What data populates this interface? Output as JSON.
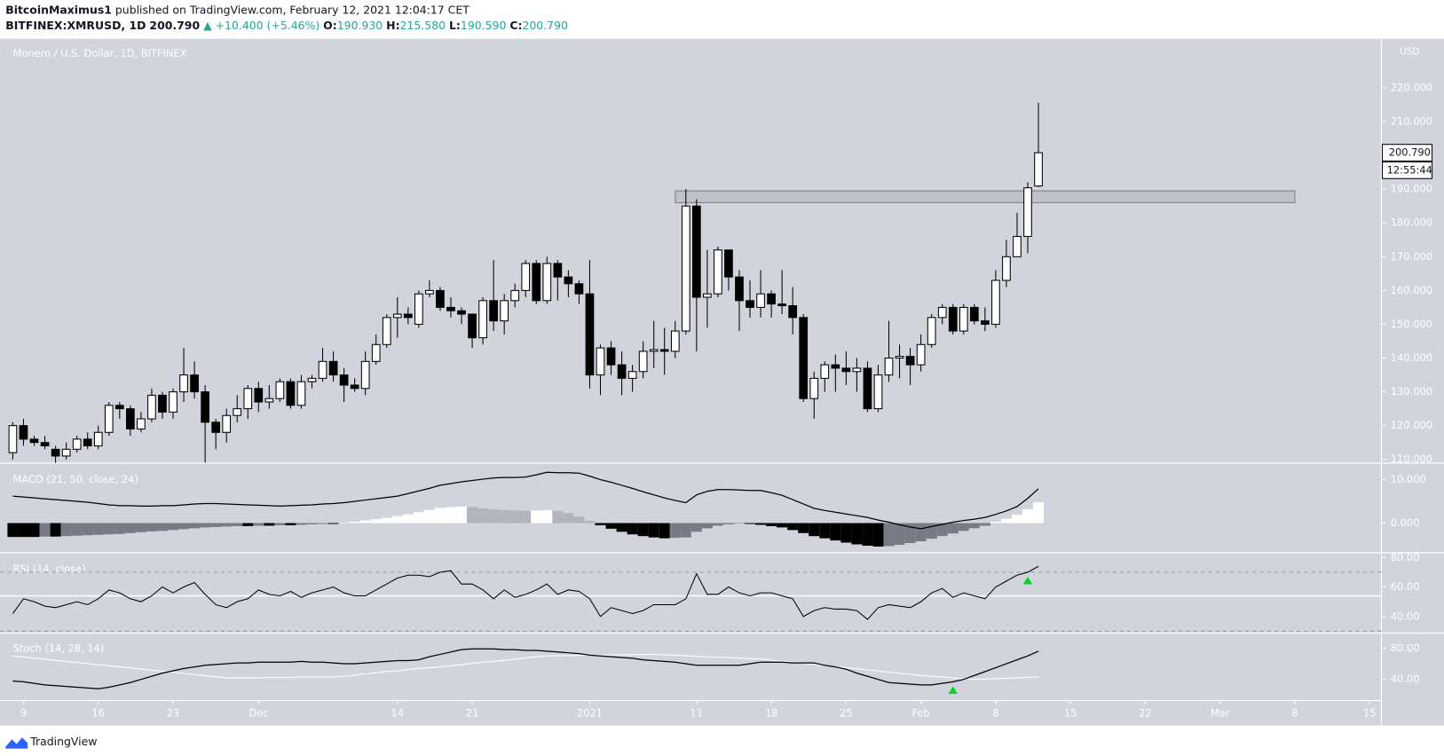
{
  "header": {
    "author": "BitcoinMaximus1",
    "published": "published on TradingView.com, February 12, 2021 12:04:17 CET",
    "symbol": "BITFINEX:XMRUSD, 1D",
    "price": "200.790",
    "change": "▲ +10.400 (+5.46%)",
    "ohlc": [
      {
        "label": "O:",
        "value": "190.930"
      },
      {
        "label": "H:",
        "value": "215.580"
      },
      {
        "label": "L:",
        "value": "190.590"
      },
      {
        "label": "C:",
        "value": "200.790"
      }
    ]
  },
  "chart_data": [
    {
      "type": "candlestick",
      "title": "Monero / U.S. Dollar, 1D, BITFINEX",
      "x": [
        0,
        1,
        2,
        3,
        4,
        5,
        6,
        7,
        8,
        9,
        10,
        11,
        12,
        13,
        14,
        15,
        16,
        17,
        18,
        19,
        20,
        21,
        22,
        23,
        24,
        25,
        26,
        27,
        28,
        29,
        30,
        31,
        32,
        33,
        34,
        35,
        36,
        37,
        38,
        39,
        40,
        41,
        42,
        43,
        44,
        45,
        46,
        47,
        48,
        49,
        50,
        51,
        52,
        53,
        54,
        55,
        56,
        57,
        58,
        59,
        60,
        61,
        62,
        63,
        64,
        65,
        66,
        67,
        68,
        69,
        70,
        71,
        72,
        73,
        74,
        75,
        76,
        77,
        78,
        79,
        80,
        81,
        82,
        83,
        84,
        85,
        86,
        87,
        88,
        89,
        90,
        91,
        92,
        93,
        94,
        95,
        96
      ],
      "open": [
        112,
        120,
        116,
        115,
        113,
        111,
        113,
        116,
        114,
        118,
        126,
        125,
        119,
        122,
        129,
        124,
        130,
        135,
        130,
        121,
        118,
        123,
        125,
        131,
        127,
        128,
        133,
        126,
        133,
        134,
        139,
        135,
        132,
        131,
        139,
        144,
        152,
        153,
        150,
        159,
        160,
        155,
        154,
        153,
        146,
        157,
        151,
        157,
        160,
        168,
        157,
        168,
        164,
        162,
        159,
        135,
        143,
        138,
        134,
        136,
        142,
        142.5,
        142,
        148,
        185,
        158,
        159,
        172,
        164,
        157,
        155,
        159,
        156,
        155.5,
        152,
        128,
        134,
        138,
        137,
        136,
        137,
        125,
        135,
        140,
        140.5,
        138,
        144,
        152,
        155,
        148,
        155,
        151,
        150,
        163,
        170,
        176,
        190.93
      ],
      "high": [
        121,
        122,
        117,
        117,
        114,
        115,
        117,
        118,
        120,
        127,
        127,
        126,
        124,
        131,
        130,
        131,
        143,
        139,
        132,
        122,
        125,
        129,
        132,
        133,
        132,
        134,
        134,
        135,
        135,
        143,
        142,
        137,
        134,
        142,
        147,
        153,
        158,
        155,
        160,
        163,
        161,
        158,
        155,
        153,
        158,
        169,
        159,
        162,
        169,
        169,
        170,
        169,
        166,
        163,
        169,
        144,
        145,
        142,
        138,
        145,
        151,
        149,
        151,
        190,
        187,
        172,
        173,
        172,
        166,
        163,
        166,
        160,
        166,
        161,
        153,
        136,
        139,
        141,
        142,
        140,
        139,
        138,
        151,
        144,
        143,
        147,
        153,
        156,
        156,
        156,
        156,
        155,
        166,
        175,
        183,
        192,
        215.58
      ],
      "low": [
        110,
        114,
        114,
        113,
        109,
        110,
        112,
        113,
        113,
        117,
        122,
        117,
        118,
        121,
        122,
        122,
        127,
        128,
        109,
        113,
        115,
        121,
        122,
        124,
        125,
        127,
        125,
        125,
        131,
        133,
        133,
        127,
        130,
        129,
        138,
        143,
        146,
        150,
        149,
        158,
        154,
        152,
        150,
        143,
        144,
        148,
        147,
        155,
        158,
        156,
        156,
        157,
        158,
        156,
        131,
        129,
        135,
        129,
        130,
        134,
        137,
        135,
        140,
        147,
        142,
        149,
        158,
        160,
        148,
        152,
        152,
        152,
        153,
        147,
        127,
        122,
        130,
        130,
        132,
        130,
        124,
        124,
        133,
        134,
        132,
        136,
        143,
        150,
        147,
        147,
        150,
        148,
        149,
        161,
        170,
        171,
        190.59
      ],
      "close": [
        120,
        116,
        115,
        114,
        111,
        113,
        116,
        114,
        118,
        126,
        125,
        119,
        122,
        129,
        124,
        130,
        135,
        130,
        121,
        118,
        123,
        125,
        131,
        127,
        128,
        133,
        126,
        133,
        134,
        139,
        135,
        132,
        131,
        139,
        144,
        152,
        153,
        152,
        159,
        160,
        155,
        154,
        153,
        146,
        157,
        151,
        157,
        160,
        168,
        157,
        168,
        164,
        162,
        159,
        135,
        143,
        138,
        134,
        136,
        142,
        142.5,
        142,
        148,
        185,
        158,
        159,
        172,
        164,
        157,
        155,
        159,
        156,
        155.5,
        152,
        128,
        134,
        138,
        137,
        136,
        137,
        125,
        135,
        140,
        140.5,
        138,
        144,
        152,
        155,
        148,
        155,
        151,
        150,
        163,
        170,
        176,
        190.39,
        200.79
      ],
      "up_color": "#ffffff",
      "down_color": "#000000",
      "xlim": [
        -1.2,
        128.1
      ],
      "xticks": [
        {
          "value": 1,
          "label": "9"
        },
        {
          "value": 8,
          "label": "16"
        },
        {
          "value": 15,
          "label": "23"
        },
        {
          "value": 23,
          "label": "Dec"
        },
        {
          "value": 36,
          "label": "14"
        },
        {
          "value": 43,
          "label": "21"
        },
        {
          "value": 54,
          "label": "2021"
        },
        {
          "value": 64,
          "label": "11"
        },
        {
          "value": 71,
          "label": "18"
        },
        {
          "value": 78,
          "label": "25"
        },
        {
          "value": 85,
          "label": "Feb"
        },
        {
          "value": 92,
          "label": "8"
        },
        {
          "value": 99,
          "label": "15"
        },
        {
          "value": 106,
          "label": "22"
        },
        {
          "value": 113,
          "label": "Mar"
        },
        {
          "value": 120,
          "label": "8"
        },
        {
          "value": 127,
          "label": "15"
        }
      ],
      "ylim": [
        109.2,
        234.5
      ],
      "yticks": [
        {
          "value": 110,
          "label": "110.000"
        },
        {
          "value": 120,
          "label": "120.000"
        },
        {
          "value": 130,
          "label": "130.000"
        },
        {
          "value": 140,
          "label": "140.000"
        },
        {
          "value": 150,
          "label": "150.000"
        },
        {
          "value": 160,
          "label": "160.000"
        },
        {
          "value": 170,
          "label": "170.000"
        },
        {
          "value": 180,
          "label": "180.000"
        },
        {
          "value": 190,
          "label": "190.000"
        },
        {
          "value": 200,
          "label": "200.000"
        },
        {
          "value": 210,
          "label": "210.000"
        },
        {
          "value": 220,
          "label": "220.000"
        }
      ],
      "y_unit": "USD",
      "last_price": {
        "value": 200.79,
        "label": "200.790"
      },
      "countdown": "12:55:44",
      "zone": {
        "x": [
          62,
          120
        ],
        "y": [
          186,
          189.5
        ],
        "color": "#787b86"
      }
    },
    {
      "type": "macd",
      "title": "MACD (21, 50, close, 24)",
      "macd": [
        6.2,
        6.0,
        5.8,
        5.6,
        5.4,
        5.2,
        5.0,
        4.8,
        4.5,
        4.2,
        4.0,
        4.0,
        3.9,
        3.9,
        4.0,
        4.0,
        4.2,
        4.4,
        4.5,
        4.5,
        4.4,
        4.3,
        4.2,
        4.1,
        4.0,
        3.9,
        4.0,
        4.1,
        4.2,
        4.4,
        4.5,
        4.7,
        5.0,
        5.3,
        5.6,
        5.9,
        6.2,
        6.8,
        7.4,
        8.0,
        8.7,
        9.1,
        9.5,
        9.8,
        10.1,
        10.4,
        10.5,
        10.5,
        10.6,
        11.1,
        11.7,
        11.6,
        11.6,
        11.5,
        10.8,
        10.0,
        9.4,
        8.7,
        8.0,
        7.2,
        6.5,
        5.8,
        5.2,
        4.7,
        6.5,
        7.3,
        7.7,
        7.7,
        7.6,
        7.5,
        7.5,
        7.0,
        6.4,
        5.4,
        4.4,
        3.4,
        2.9,
        2.5,
        2.1,
        1.7,
        1.3,
        0.7,
        0.2,
        -0.4,
        -0.9,
        -1.3,
        -0.8,
        -0.3,
        0.2,
        0.6,
        0.9,
        1.3,
        2.0,
        2.8,
        3.8,
        5.7,
        7.9
      ],
      "histogram": [
        -3.2,
        -3.2,
        -3.2,
        -3.1,
        -3.1,
        -3.0,
        -2.9,
        -2.8,
        -2.7,
        -2.6,
        -2.5,
        -2.3,
        -2.1,
        -1.9,
        -1.8,
        -1.6,
        -1.4,
        -1.2,
        -1.0,
        -0.9,
        -0.8,
        -0.7,
        -0.7,
        -0.6,
        -0.6,
        -0.5,
        -0.5,
        -0.4,
        -0.3,
        -0.2,
        -0.2,
        0.1,
        0.3,
        0.6,
        0.9,
        1.2,
        1.6,
        2.0,
        2.5,
        3.0,
        3.5,
        3.7,
        3.8,
        3.7,
        3.4,
        3.2,
        3.0,
        2.9,
        2.8,
        2.9,
        3.0,
        2.8,
        2.3,
        1.5,
        0.5,
        -0.5,
        -1.3,
        -2.0,
        -2.6,
        -3.0,
        -3.3,
        -3.5,
        -3.4,
        -3.3,
        -2.0,
        -1.2,
        -0.6,
        -0.3,
        -0.1,
        -0.2,
        -0.4,
        -0.7,
        -1.0,
        -1.6,
        -2.3,
        -3.0,
        -3.5,
        -4.0,
        -4.5,
        -4.9,
        -5.2,
        -5.4,
        -5.3,
        -5.0,
        -4.6,
        -4.2,
        -3.6,
        -3.0,
        -2.4,
        -1.8,
        -1.2,
        -0.6,
        0.3,
        1.0,
        1.9,
        3.2,
        4.8
      ],
      "line_color": "#000000",
      "hist_colors": {
        "up_rising": "#ffffff",
        "up_falling": "#b2b5be",
        "down_falling": "#000000",
        "down_rising": "#787b86"
      },
      "ylim": [
        -6.6,
        13.4
      ],
      "yticks": [
        {
          "value": 0,
          "label": "0.000"
        },
        {
          "value": 10,
          "label": "10.000"
        }
      ]
    },
    {
      "type": "rsi",
      "title": "RSI (14, close)",
      "values": [
        42,
        52,
        50,
        47,
        46,
        48,
        50,
        48,
        52,
        58,
        56,
        52,
        50,
        54,
        60,
        56,
        60,
        63,
        55,
        48,
        46,
        50,
        52,
        58,
        55,
        54,
        57,
        53,
        56,
        58,
        60,
        56,
        54,
        54,
        58,
        62,
        66,
        68,
        68,
        67,
        70,
        71,
        62,
        62,
        58,
        52,
        58,
        53,
        55,
        58,
        62,
        55,
        58,
        57,
        52,
        40,
        46,
        44,
        42,
        44,
        48,
        48,
        48,
        52,
        69,
        55,
        55,
        60,
        56,
        54,
        56,
        56,
        54,
        52,
        40,
        44,
        46,
        45,
        45,
        44,
        38,
        46,
        48,
        47,
        46,
        50,
        56,
        59,
        53,
        56,
        54,
        52,
        60,
        64,
        68,
        70,
        74
      ],
      "color": "#000000",
      "levels": [
        70,
        30
      ],
      "reference_line": 54,
      "ylim": [
        30,
        82
      ],
      "yticks": [
        {
          "value": 40,
          "label": "40.00"
        },
        {
          "value": 60,
          "label": "60.00"
        },
        {
          "value": 80,
          "label": "80.00"
        }
      ],
      "signal": {
        "x": 95,
        "color": "#00d61e"
      }
    },
    {
      "type": "stoch",
      "title": "Stoch (14, 28, 14)",
      "k": [
        38,
        37,
        35,
        33,
        32,
        31,
        30,
        29,
        28,
        30,
        33,
        36,
        40,
        44,
        48,
        51,
        54,
        56,
        58,
        59,
        60,
        61,
        61,
        62,
        62,
        62,
        62,
        63,
        62,
        62,
        61,
        60,
        60,
        61,
        62,
        63,
        64,
        64,
        65,
        69,
        72,
        75,
        78,
        79,
        79,
        79,
        78,
        78,
        77,
        77,
        76,
        75,
        74,
        73,
        71,
        70,
        69,
        68,
        67,
        65,
        64,
        63,
        62,
        60,
        58,
        58,
        58,
        58,
        58,
        60,
        62,
        62,
        62,
        61,
        61,
        61,
        58,
        56,
        53,
        48,
        44,
        40,
        36,
        35,
        34,
        33,
        33,
        35,
        37,
        40,
        45,
        50,
        55,
        60,
        65,
        70,
        76
      ],
      "d": [
        70,
        68.6,
        67.2,
        65.8,
        64.4,
        63,
        61.6,
        60.2,
        58.8,
        57.4,
        56,
        54.6,
        53.2,
        51.8,
        50.4,
        49,
        47.6,
        46.2,
        44.8,
        43.4,
        42,
        42,
        42,
        42,
        42.5,
        42.5,
        42.5,
        43,
        43,
        43,
        43,
        44,
        45.5,
        47,
        48.5,
        50,
        51,
        52.5,
        54,
        55,
        56,
        57.5,
        59,
        60.5,
        62,
        63,
        64.5,
        66,
        67.5,
        69,
        70,
        70.2,
        70.4,
        70.6,
        70.8,
        71,
        71.2,
        71.4,
        71.6,
        71.8,
        72,
        71.4,
        70.8,
        70.2,
        69.6,
        69,
        68.4,
        67.8,
        67.2,
        66.6,
        66,
        64.6,
        63.2,
        61.9,
        60.5,
        59.1,
        57.8,
        56.4,
        55,
        53.6,
        52.1,
        50.7,
        49.3,
        47.9,
        46.4,
        45,
        44,
        43,
        42,
        41,
        40,
        40.5,
        41,
        41.5,
        42,
        42.5,
        43
      ],
      "k_color": "#000000",
      "d_color": "#ffffff",
      "ylim": [
        13,
        98
      ],
      "yticks": [
        {
          "value": 40,
          "label": "40.00"
        },
        {
          "value": 80,
          "label": "80.00"
        }
      ],
      "signal": {
        "x": 88,
        "color": "#00d61e"
      }
    }
  ],
  "footer": {
    "brand": "TradingView"
  }
}
